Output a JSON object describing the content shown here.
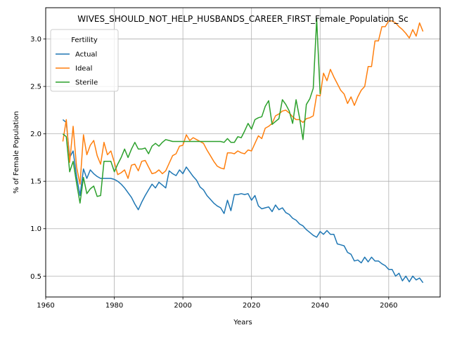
{
  "chart_data": {
    "type": "line",
    "title": "WIVES_SHOULD_NOT_HELP_HUSBANDS_CAREER_FIRST_Female_Population_Sc",
    "xlabel": "Years",
    "ylabel": "% of Female Population",
    "xlim": [
      1960,
      2075
    ],
    "ylim": [
      0.28,
      3.33
    ],
    "xticks": [
      1960,
      1980,
      2000,
      2020,
      2040,
      2060
    ],
    "yticks": [
      0.5,
      1.0,
      1.5,
      2.0,
      2.5,
      3.0
    ],
    "grid": true,
    "legend": {
      "title": "Fertility",
      "placement": "top-left"
    },
    "series": [
      {
        "name": "Actual",
        "color": "#1f77b4",
        "points": [
          [
            1965,
            2.15
          ],
          [
            1966,
            2.12
          ],
          [
            1967,
            1.75
          ],
          [
            1968,
            1.82
          ],
          [
            1969,
            1.55
          ],
          [
            1970,
            1.35
          ],
          [
            1971,
            1.63
          ],
          [
            1972,
            1.53
          ],
          [
            1973,
            1.62
          ],
          [
            1974,
            1.58
          ],
          [
            1975,
            1.55
          ],
          [
            1976,
            1.53
          ],
          [
            1977,
            1.53
          ],
          [
            1978,
            1.53
          ],
          [
            1979,
            1.53
          ],
          [
            1980,
            1.52
          ],
          [
            1981,
            1.5
          ],
          [
            1982,
            1.47
          ],
          [
            1983,
            1.43
          ],
          [
            1984,
            1.38
          ],
          [
            1985,
            1.33
          ],
          [
            1986,
            1.26
          ],
          [
            1987,
            1.2
          ],
          [
            1988,
            1.28
          ],
          [
            1989,
            1.35
          ],
          [
            1990,
            1.41
          ],
          [
            1991,
            1.47
          ],
          [
            1992,
            1.43
          ],
          [
            1993,
            1.49
          ],
          [
            1994,
            1.46
          ],
          [
            1995,
            1.43
          ],
          [
            1996,
            1.61
          ],
          [
            1997,
            1.58
          ],
          [
            1998,
            1.56
          ],
          [
            1999,
            1.62
          ],
          [
            2000,
            1.58
          ],
          [
            2001,
            1.65
          ],
          [
            2002,
            1.6
          ],
          [
            2003,
            1.55
          ],
          [
            2004,
            1.51
          ],
          [
            2005,
            1.44
          ],
          [
            2006,
            1.41
          ],
          [
            2007,
            1.35
          ],
          [
            2008,
            1.31
          ],
          [
            2009,
            1.27
          ],
          [
            2010,
            1.24
          ],
          [
            2011,
            1.22
          ],
          [
            2012,
            1.16
          ],
          [
            2013,
            1.3
          ],
          [
            2014,
            1.19
          ],
          [
            2015,
            1.36
          ],
          [
            2016,
            1.36
          ],
          [
            2017,
            1.37
          ],
          [
            2018,
            1.36
          ],
          [
            2019,
            1.37
          ],
          [
            2020,
            1.3
          ],
          [
            2021,
            1.35
          ],
          [
            2022,
            1.24
          ],
          [
            2023,
            1.21
          ],
          [
            2024,
            1.22
          ],
          [
            2025,
            1.23
          ],
          [
            2026,
            1.18
          ],
          [
            2027,
            1.25
          ],
          [
            2028,
            1.2
          ],
          [
            2029,
            1.22
          ],
          [
            2030,
            1.17
          ],
          [
            2031,
            1.15
          ],
          [
            2032,
            1.11
          ],
          [
            2033,
            1.09
          ],
          [
            2034,
            1.05
          ],
          [
            2035,
            1.03
          ],
          [
            2036,
            0.99
          ],
          [
            2037,
            0.96
          ],
          [
            2038,
            0.93
          ],
          [
            2039,
            0.91
          ],
          [
            2040,
            0.97
          ],
          [
            2041,
            0.94
          ],
          [
            2042,
            0.98
          ],
          [
            2043,
            0.94
          ],
          [
            2044,
            0.94
          ],
          [
            2045,
            0.84
          ],
          [
            2046,
            0.83
          ],
          [
            2047,
            0.82
          ],
          [
            2048,
            0.75
          ],
          [
            2049,
            0.73
          ],
          [
            2050,
            0.66
          ],
          [
            2051,
            0.67
          ],
          [
            2052,
            0.64
          ],
          [
            2053,
            0.7
          ],
          [
            2054,
            0.65
          ],
          [
            2055,
            0.7
          ],
          [
            2056,
            0.66
          ],
          [
            2057,
            0.66
          ],
          [
            2058,
            0.63
          ],
          [
            2059,
            0.61
          ],
          [
            2060,
            0.57
          ],
          [
            2061,
            0.57
          ],
          [
            2062,
            0.5
          ],
          [
            2063,
            0.53
          ],
          [
            2064,
            0.45
          ],
          [
            2065,
            0.5
          ],
          [
            2066,
            0.44
          ],
          [
            2067,
            0.5
          ],
          [
            2068,
            0.46
          ],
          [
            2069,
            0.48
          ],
          [
            2070,
            0.43
          ]
        ]
      },
      {
        "name": "Ideal",
        "color": "#ff7f0e",
        "points": [
          [
            1965,
            1.92
          ],
          [
            1966,
            2.15
          ],
          [
            1967,
            1.7
          ],
          [
            1968,
            2.08
          ],
          [
            1969,
            1.65
          ],
          [
            1970,
            1.47
          ],
          [
            1971,
            1.99
          ],
          [
            1972,
            1.78
          ],
          [
            1973,
            1.88
          ],
          [
            1974,
            1.93
          ],
          [
            1975,
            1.77
          ],
          [
            1976,
            1.68
          ],
          [
            1977,
            1.91
          ],
          [
            1978,
            1.78
          ],
          [
            1979,
            1.82
          ],
          [
            1980,
            1.7
          ],
          [
            1981,
            1.57
          ],
          [
            1982,
            1.59
          ],
          [
            1983,
            1.62
          ],
          [
            1984,
            1.53
          ],
          [
            1985,
            1.67
          ],
          [
            1986,
            1.68
          ],
          [
            1987,
            1.61
          ],
          [
            1988,
            1.71
          ],
          [
            1989,
            1.72
          ],
          [
            1990,
            1.65
          ],
          [
            1991,
            1.58
          ],
          [
            1992,
            1.59
          ],
          [
            1993,
            1.62
          ],
          [
            1994,
            1.58
          ],
          [
            1995,
            1.61
          ],
          [
            1996,
            1.69
          ],
          [
            1997,
            1.77
          ],
          [
            1998,
            1.79
          ],
          [
            1999,
            1.87
          ],
          [
            2000,
            1.88
          ],
          [
            2001,
            1.99
          ],
          [
            2002,
            1.93
          ],
          [
            2003,
            1.96
          ],
          [
            2004,
            1.94
          ],
          [
            2005,
            1.92
          ],
          [
            2006,
            1.9
          ],
          [
            2007,
            1.83
          ],
          [
            2008,
            1.77
          ],
          [
            2009,
            1.71
          ],
          [
            2010,
            1.66
          ],
          [
            2011,
            1.64
          ],
          [
            2012,
            1.63
          ],
          [
            2013,
            1.8
          ],
          [
            2014,
            1.8
          ],
          [
            2015,
            1.79
          ],
          [
            2016,
            1.82
          ],
          [
            2017,
            1.8
          ],
          [
            2018,
            1.79
          ],
          [
            2019,
            1.83
          ],
          [
            2020,
            1.82
          ],
          [
            2021,
            1.9
          ],
          [
            2022,
            1.98
          ],
          [
            2023,
            1.95
          ],
          [
            2024,
            2.06
          ],
          [
            2025,
            2.08
          ],
          [
            2026,
            2.11
          ],
          [
            2027,
            2.19
          ],
          [
            2028,
            2.21
          ],
          [
            2029,
            2.24
          ],
          [
            2030,
            2.25
          ],
          [
            2031,
            2.22
          ],
          [
            2032,
            2.18
          ],
          [
            2033,
            2.15
          ],
          [
            2034,
            2.15
          ],
          [
            2035,
            2.12
          ],
          [
            2036,
            2.16
          ],
          [
            2037,
            2.17
          ],
          [
            2038,
            2.19
          ],
          [
            2039,
            2.41
          ],
          [
            2040,
            2.4
          ],
          [
            2041,
            2.64
          ],
          [
            2042,
            2.56
          ],
          [
            2043,
            2.68
          ],
          [
            2044,
            2.6
          ],
          [
            2045,
            2.53
          ],
          [
            2046,
            2.46
          ],
          [
            2047,
            2.42
          ],
          [
            2048,
            2.32
          ],
          [
            2049,
            2.39
          ],
          [
            2050,
            2.3
          ],
          [
            2051,
            2.39
          ],
          [
            2052,
            2.46
          ],
          [
            2053,
            2.5
          ],
          [
            2054,
            2.71
          ],
          [
            2055,
            2.71
          ],
          [
            2056,
            2.98
          ],
          [
            2057,
            2.98
          ],
          [
            2058,
            3.13
          ],
          [
            2059,
            3.13
          ],
          [
            2060,
            3.19
          ],
          [
            2061,
            3.19
          ],
          [
            2062,
            3.17
          ],
          [
            2063,
            3.13
          ],
          [
            2064,
            3.1
          ],
          [
            2065,
            3.06
          ],
          [
            2066,
            3.01
          ],
          [
            2067,
            3.1
          ],
          [
            2068,
            3.03
          ],
          [
            2069,
            3.17
          ],
          [
            2070,
            3.08
          ]
        ]
      },
      {
        "name": "Sterile",
        "color": "#2ca02c",
        "points": [
          [
            1965,
            2.0
          ],
          [
            1966,
            1.97
          ],
          [
            1967,
            1.6
          ],
          [
            1968,
            1.71
          ],
          [
            1969,
            1.48
          ],
          [
            1970,
            1.27
          ],
          [
            1971,
            1.54
          ],
          [
            1972,
            1.37
          ],
          [
            1973,
            1.42
          ],
          [
            1974,
            1.45
          ],
          [
            1975,
            1.34
          ],
          [
            1976,
            1.35
          ],
          [
            1977,
            1.71
          ],
          [
            1978,
            1.71
          ],
          [
            1979,
            1.71
          ],
          [
            1980,
            1.6
          ],
          [
            1981,
            1.68
          ],
          [
            1982,
            1.75
          ],
          [
            1983,
            1.84
          ],
          [
            1984,
            1.75
          ],
          [
            1985,
            1.84
          ],
          [
            1986,
            1.91
          ],
          [
            1987,
            1.84
          ],
          [
            1988,
            1.84
          ],
          [
            1989,
            1.85
          ],
          [
            1990,
            1.79
          ],
          [
            1991,
            1.87
          ],
          [
            1992,
            1.9
          ],
          [
            1993,
            1.87
          ],
          [
            1994,
            1.91
          ],
          [
            1995,
            1.94
          ],
          [
            1996,
            1.93
          ],
          [
            1997,
            1.92
          ],
          [
            1998,
            1.92
          ],
          [
            1999,
            1.92
          ],
          [
            2000,
            1.92
          ],
          [
            2001,
            1.92
          ],
          [
            2002,
            1.92
          ],
          [
            2003,
            1.92
          ],
          [
            2004,
            1.92
          ],
          [
            2005,
            1.92
          ],
          [
            2006,
            1.92
          ],
          [
            2007,
            1.92
          ],
          [
            2008,
            1.92
          ],
          [
            2009,
            1.92
          ],
          [
            2010,
            1.92
          ],
          [
            2011,
            1.92
          ],
          [
            2012,
            1.91
          ],
          [
            2013,
            1.95
          ],
          [
            2014,
            1.91
          ],
          [
            2015,
            1.91
          ],
          [
            2016,
            1.97
          ],
          [
            2017,
            1.96
          ],
          [
            2018,
            2.03
          ],
          [
            2019,
            2.11
          ],
          [
            2020,
            2.05
          ],
          [
            2021,
            2.15
          ],
          [
            2022,
            2.17
          ],
          [
            2023,
            2.18
          ],
          [
            2024,
            2.29
          ],
          [
            2025,
            2.35
          ],
          [
            2026,
            2.1
          ],
          [
            2027,
            2.13
          ],
          [
            2028,
            2.16
          ],
          [
            2029,
            2.36
          ],
          [
            2030,
            2.31
          ],
          [
            2031,
            2.24
          ],
          [
            2032,
            2.11
          ],
          [
            2033,
            2.36
          ],
          [
            2034,
            2.17
          ],
          [
            2035,
            1.94
          ],
          [
            2036,
            2.31
          ],
          [
            2037,
            2.37
          ],
          [
            2038,
            2.48
          ],
          [
            2039,
            3.21
          ],
          [
            2040,
            2.42
          ]
        ]
      }
    ]
  }
}
